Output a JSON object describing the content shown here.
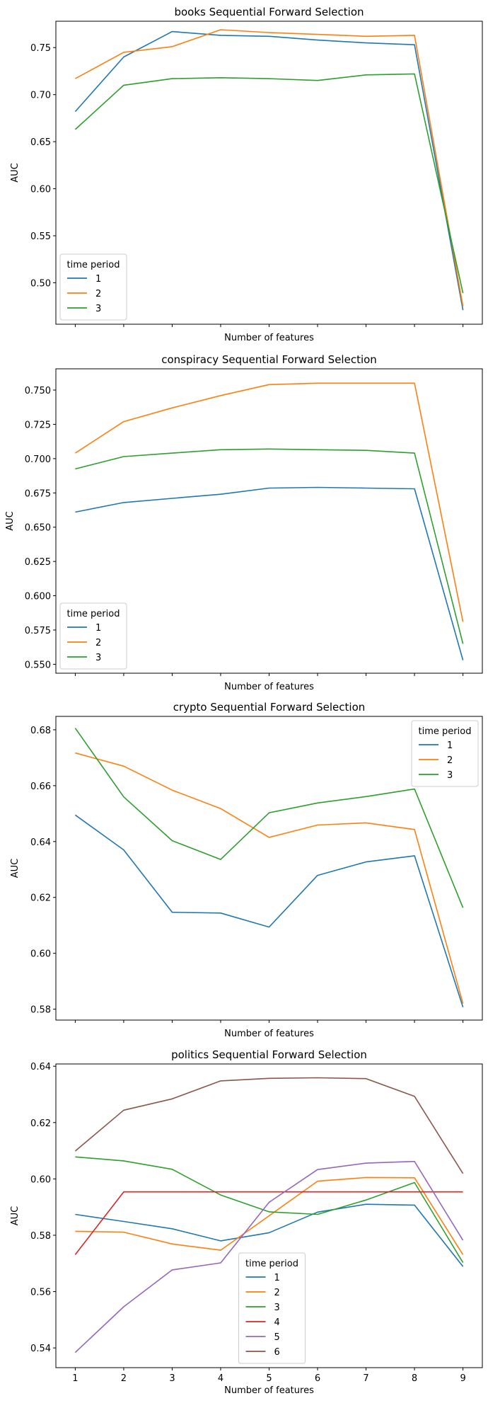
{
  "figure": {
    "xlabel": "Number of features",
    "x_ticks": [
      1,
      2,
      3,
      4,
      5,
      6,
      7,
      8,
      9
    ]
  },
  "chart_data": [
    {
      "type": "line",
      "title": "books Sequential Forward Selection",
      "xlabel": "Number of features",
      "ylabel": "AUC",
      "x": [
        1,
        2,
        3,
        4,
        5,
        6,
        7,
        8,
        9
      ],
      "ylim": [
        0.456,
        0.778
      ],
      "yticks": [
        "0.50",
        "0.55",
        "0.60",
        "0.65",
        "0.70",
        "0.75"
      ],
      "show_xtick_labels": false,
      "legend": {
        "title": "time period",
        "position": "lower-left"
      },
      "series": [
        {
          "name": "1",
          "color": "#1f77b4",
          "values": [
            0.682,
            0.74,
            0.767,
            0.763,
            0.762,
            0.758,
            0.755,
            0.753,
            0.471
          ]
        },
        {
          "name": "2",
          "color": "#ff7f0e",
          "values": [
            0.717,
            0.745,
            0.751,
            0.769,
            0.766,
            0.764,
            0.762,
            0.763,
            0.475
          ]
        },
        {
          "name": "3",
          "color": "#2ca02c",
          "values": [
            0.663,
            0.71,
            0.717,
            0.718,
            0.717,
            0.715,
            0.721,
            0.722,
            0.489
          ]
        }
      ]
    },
    {
      "type": "line",
      "title": "conspiracy Sequential Forward Selection",
      "xlabel": "Number of features",
      "ylabel": "AUC",
      "x": [
        1,
        2,
        3,
        4,
        5,
        6,
        7,
        8,
        9
      ],
      "ylim": [
        0.5435,
        0.7655
      ],
      "yticks": [
        "0.550",
        "0.575",
        "0.600",
        "0.625",
        "0.650",
        "0.675",
        "0.700",
        "0.725",
        "0.750"
      ],
      "show_xtick_labels": false,
      "legend": {
        "title": "time period",
        "position": "lower-left"
      },
      "series": [
        {
          "name": "1",
          "color": "#1f77b4",
          "values": [
            0.661,
            0.668,
            0.671,
            0.674,
            0.6785,
            0.679,
            0.6785,
            0.678,
            0.553
          ]
        },
        {
          "name": "2",
          "color": "#ff7f0e",
          "values": [
            0.704,
            0.727,
            0.737,
            0.746,
            0.754,
            0.755,
            0.755,
            0.755,
            0.581
          ]
        },
        {
          "name": "3",
          "color": "#2ca02c",
          "values": [
            0.6925,
            0.7015,
            0.704,
            0.7065,
            0.707,
            0.7065,
            0.706,
            0.704,
            0.565
          ]
        }
      ]
    },
    {
      "type": "line",
      "title": "crypto Sequential Forward Selection",
      "xlabel": "Number of features",
      "ylabel": "AUC",
      "x": [
        1,
        2,
        3,
        4,
        5,
        6,
        7,
        8,
        9
      ],
      "ylim": [
        0.5761,
        0.6848
      ],
      "yticks": [
        "0.58",
        "0.60",
        "0.62",
        "0.64",
        "0.66",
        "0.68"
      ],
      "show_xtick_labels": false,
      "legend": {
        "title": "time period",
        "position": "upper-right"
      },
      "series": [
        {
          "name": "1",
          "color": "#1f77b4",
          "values": [
            0.6495,
            0.637,
            0.6147,
            0.6144,
            0.6094,
            0.6279,
            0.6327,
            0.6349,
            0.5807
          ]
        },
        {
          "name": "2",
          "color": "#ff7f0e",
          "values": [
            0.6717,
            0.667,
            0.6584,
            0.6518,
            0.6415,
            0.6459,
            0.6467,
            0.6443,
            0.582
          ]
        },
        {
          "name": "3",
          "color": "#2ca02c",
          "values": [
            0.6806,
            0.656,
            0.6403,
            0.6336,
            0.6503,
            0.6538,
            0.6561,
            0.6588,
            0.6163
          ]
        }
      ]
    },
    {
      "type": "line",
      "title": "politics Sequential Forward Selection",
      "xlabel": "Number of features",
      "ylabel": "AUC",
      "x": [
        1,
        2,
        3,
        4,
        5,
        6,
        7,
        8,
        9
      ],
      "ylim": [
        0.533,
        0.6408
      ],
      "yticks": [
        "0.54",
        "0.56",
        "0.58",
        "0.60",
        "0.62",
        "0.64"
      ],
      "show_xtick_labels": true,
      "legend": {
        "title": "time period",
        "position": "lower-center"
      },
      "series": [
        {
          "name": "1",
          "color": "#1f77b4",
          "values": [
            0.5874,
            0.5849,
            0.5823,
            0.578,
            0.5809,
            0.5882,
            0.591,
            0.5907,
            0.5689
          ]
        },
        {
          "name": "2",
          "color": "#ff7f0e",
          "values": [
            0.5814,
            0.5811,
            0.5769,
            0.5747,
            0.5869,
            0.5992,
            0.6005,
            0.6004,
            0.5731
          ]
        },
        {
          "name": "3",
          "color": "#2ca02c",
          "values": [
            0.6078,
            0.6064,
            0.6034,
            0.5943,
            0.5883,
            0.5874,
            0.5925,
            0.5987,
            0.5703
          ]
        },
        {
          "name": "4",
          "color": "#d62728",
          "values": [
            0.5731,
            0.5954,
            0.5954,
            0.5954,
            0.5954,
            0.5954,
            0.5954,
            0.5954,
            0.5954
          ]
        },
        {
          "name": "5",
          "color": "#9467bd",
          "values": [
            0.5384,
            0.5546,
            0.5677,
            0.5702,
            0.5917,
            0.6033,
            0.6056,
            0.6062,
            0.5782
          ]
        },
        {
          "name": "6",
          "color": "#8c564b",
          "values": [
            0.6099,
            0.6244,
            0.6284,
            0.6348,
            0.6357,
            0.6359,
            0.6356,
            0.6293,
            0.6019
          ]
        }
      ]
    }
  ]
}
